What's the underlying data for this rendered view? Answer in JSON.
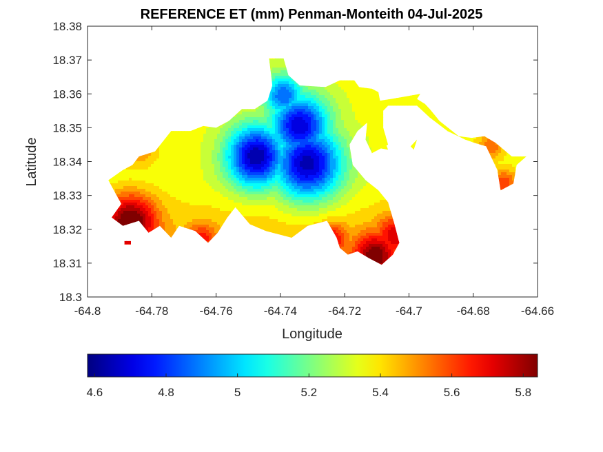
{
  "chart_data": {
    "type": "heatmap",
    "title": "REFERENCE ET (mm) Penman-Monteith 04-Jul-2025",
    "xlabel": "Longitude",
    "ylabel": "Latitude",
    "xlim": [
      -64.8,
      -64.66
    ],
    "ylim": [
      18.3,
      18.38
    ],
    "x_ticks": [
      -64.8,
      -64.78,
      -64.76,
      -64.74,
      -64.72,
      -64.7,
      -64.68,
      -64.66
    ],
    "x_tick_labels": [
      "-64.8",
      "-64.78",
      "-64.76",
      "-64.74",
      "-64.72",
      "-64.7",
      "-64.68",
      "-64.66"
    ],
    "y_ticks": [
      18.3,
      18.31,
      18.32,
      18.33,
      18.34,
      18.35,
      18.36,
      18.37,
      18.38
    ],
    "y_tick_labels": [
      "18.3",
      "18.31",
      "18.32",
      "18.33",
      "18.34",
      "18.35",
      "18.36",
      "18.37",
      "18.38"
    ],
    "grid": false,
    "colormap": "jet",
    "colorbar": {
      "location": "bottom",
      "clim": [
        4.58,
        5.84
      ],
      "ticks": [
        4.6,
        4.8,
        5.0,
        5.2,
        5.4,
        5.6,
        5.8
      ],
      "tick_labels": [
        "4.6",
        "4.8",
        "5",
        "5.2",
        "5.4",
        "5.6",
        "5.8"
      ]
    },
    "island_outline": [
      [
        -64.792,
        18.3355
      ],
      [
        -64.789,
        18.3375
      ],
      [
        -64.786,
        18.339
      ],
      [
        -64.784,
        18.3415
      ],
      [
        -64.779,
        18.343
      ],
      [
        -64.774,
        18.349
      ],
      [
        -64.768,
        18.349
      ],
      [
        -64.764,
        18.3505
      ],
      [
        -64.76,
        18.35
      ],
      [
        -64.756,
        18.352
      ],
      [
        -64.752,
        18.3555
      ],
      [
        -64.748,
        18.3555
      ],
      [
        -64.744,
        18.358
      ],
      [
        -64.7425,
        18.3625
      ],
      [
        -64.7435,
        18.3705
      ],
      [
        -64.739,
        18.3705
      ],
      [
        -64.7375,
        18.3655
      ],
      [
        -64.734,
        18.3625
      ],
      [
        -64.726,
        18.362
      ],
      [
        -64.7215,
        18.364
      ],
      [
        -64.717,
        18.364
      ],
      [
        -64.7155,
        18.362
      ],
      [
        -64.7115,
        18.3615
      ],
      [
        -64.7095,
        18.3605
      ],
      [
        -64.709,
        18.358
      ],
      [
        -64.7055,
        18.3585
      ],
      [
        -64.6995,
        18.3595
      ],
      [
        -64.6965,
        18.36
      ],
      [
        -64.6975,
        18.3585
      ],
      [
        -64.695,
        18.357
      ],
      [
        -64.6935,
        18.3555
      ],
      [
        -64.6905,
        18.352
      ],
      [
        -64.6845,
        18.3475
      ],
      [
        -64.6805,
        18.347
      ],
      [
        -64.6765,
        18.3475
      ],
      [
        -64.673,
        18.3455
      ],
      [
        -64.668,
        18.3415
      ],
      [
        -64.6635,
        18.3415
      ],
      [
        -64.6665,
        18.339
      ],
      [
        -64.6675,
        18.3335
      ],
      [
        -64.6715,
        18.3315
      ],
      [
        -64.6725,
        18.3375
      ],
      [
        -64.676,
        18.3445
      ],
      [
        -64.6795,
        18.3455
      ],
      [
        -64.6825,
        18.3465
      ],
      [
        -64.688,
        18.349
      ],
      [
        -64.6935,
        18.353
      ],
      [
        -64.6975,
        18.3565
      ],
      [
        -64.701,
        18.3565
      ],
      [
        -64.7065,
        18.3565
      ],
      [
        -64.708,
        18.355
      ],
      [
        -64.708,
        18.35
      ],
      [
        -64.7065,
        18.345
      ],
      [
        -64.7115,
        18.3425
      ],
      [
        -64.7135,
        18.3465
      ],
      [
        -64.713,
        18.3515
      ],
      [
        -64.716,
        18.349
      ],
      [
        -64.7185,
        18.345
      ],
      [
        -64.7175,
        18.339
      ],
      [
        -64.7135,
        18.3345
      ],
      [
        -64.7095,
        18.3315
      ],
      [
        -64.7065,
        18.328
      ],
      [
        -64.7045,
        18.3215
      ],
      [
        -64.703,
        18.316
      ],
      [
        -64.705,
        18.3125
      ],
      [
        -64.7085,
        18.3095
      ],
      [
        -64.7125,
        18.3115
      ],
      [
        -64.716,
        18.3135
      ],
      [
        -64.719,
        18.3125
      ],
      [
        -64.7215,
        18.3145
      ],
      [
        -64.7225,
        18.3175
      ],
      [
        -64.7255,
        18.3225
      ],
      [
        -64.7315,
        18.321
      ],
      [
        -64.7365,
        18.3175
      ],
      [
        -64.7445,
        18.3195
      ],
      [
        -64.7495,
        18.3215
      ],
      [
        -64.754,
        18.3265
      ],
      [
        -64.7565,
        18.3235
      ],
      [
        -64.7595,
        18.319
      ],
      [
        -64.7625,
        18.316
      ],
      [
        -64.7665,
        18.3195
      ],
      [
        -64.7715,
        18.321
      ],
      [
        -64.774,
        18.3175
      ],
      [
        -64.7775,
        18.321
      ],
      [
        -64.781,
        18.319
      ],
      [
        -64.784,
        18.3225
      ],
      [
        -64.789,
        18.321
      ],
      [
        -64.7925,
        18.3235
      ],
      [
        -64.7895,
        18.3275
      ],
      [
        -64.7915,
        18.331
      ],
      [
        -64.7935,
        18.3345
      ]
    ],
    "island_fragments": [
      [
        [
          -64.7885,
          18.3165
        ],
        [
          -64.7865,
          18.3165
        ],
        [
          -64.7865,
          18.3155
        ],
        [
          -64.7885,
          18.3155
        ]
      ],
      [
        [
          -64.6995,
          18.3445
        ],
        [
          -64.6975,
          18.3465
        ],
        [
          -64.6985,
          18.3435
        ]
      ],
      [
        [
          -64.7095,
          18.344
        ],
        [
          -64.7075,
          18.346
        ],
        [
          -64.7065,
          18.3435
        ]
      ]
    ],
    "value_field": {
      "base_value": 5.35,
      "local_minima": [
        {
          "lon": -64.7475,
          "lat": 18.3415,
          "value": 4.62,
          "radius": 0.0065
        },
        {
          "lon": -64.7315,
          "lat": 18.3395,
          "value": 4.64,
          "radius": 0.0075
        },
        {
          "lon": -64.734,
          "lat": 18.3505,
          "value": 4.68,
          "radius": 0.0065
        },
        {
          "lon": -64.739,
          "lat": 18.3595,
          "value": 4.85,
          "radius": 0.0045
        }
      ],
      "local_maxima": [
        {
          "lon": -64.7865,
          "lat": 18.3225,
          "value": 5.84,
          "radius": 0.0055
        },
        {
          "lon": -64.7105,
          "lat": 18.3125,
          "value": 5.74,
          "radius": 0.0045
        },
        {
          "lon": -64.7045,
          "lat": 18.3185,
          "value": 5.64,
          "radius": 0.004
        },
        {
          "lon": -64.7235,
          "lat": 18.3175,
          "value": 5.6,
          "radius": 0.003
        },
        {
          "lon": -64.7645,
          "lat": 18.3175,
          "value": 5.58,
          "radius": 0.003
        },
        {
          "lon": -64.6705,
          "lat": 18.3335,
          "value": 5.62,
          "radius": 0.003
        },
        {
          "lon": -64.6745,
          "lat": 18.3445,
          "value": 5.55,
          "radius": 0.003
        },
        {
          "lon": -64.7845,
          "lat": 18.3445,
          "value": 5.55,
          "radius": 0.004
        }
      ],
      "cool_core_value": 4.66,
      "edge_rise_per_km": 0.33
    }
  }
}
